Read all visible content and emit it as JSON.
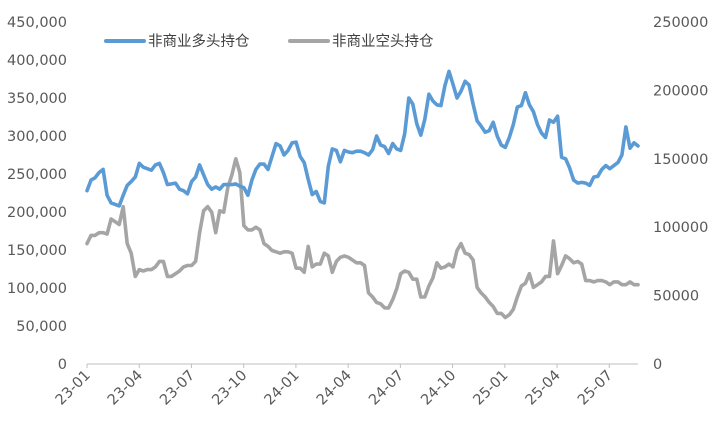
{
  "chart_data": {
    "type": "line",
    "title": "",
    "xlabel": "",
    "ylabel": "",
    "grid": false,
    "legend_position": "top-left",
    "x_ticks": [
      "23-01",
      "23-04",
      "23-07",
      "23-10",
      "24-01",
      "24-04",
      "24-07",
      "24-10",
      "25-01",
      "25-04",
      "25-07"
    ],
    "x_range": [
      0,
      144
    ],
    "y_left": {
      "range": [
        0,
        450000
      ],
      "ticks": [
        0,
        50000,
        100000,
        150000,
        200000,
        250000,
        300000,
        350000,
        400000,
        450000
      ],
      "tick_labels": [
        "0",
        "50,000",
        "100,000",
        "150,000",
        "200,000",
        "250,000",
        "300,000",
        "350,000",
        "400,000",
        "450,000"
      ]
    },
    "y_right": {
      "range": [
        0,
        250000
      ],
      "ticks": [
        0,
        50000,
        100000,
        150000,
        200000,
        250000
      ],
      "tick_labels": [
        "0",
        "50000",
        "100000",
        "150000",
        "200000",
        "250000"
      ]
    },
    "series": [
      {
        "name": "非商业多头持仓",
        "axis": "left",
        "color": "#5B9BD5",
        "values": [
          228000,
          242000,
          245000,
          252000,
          256000,
          222000,
          212000,
          210000,
          208000,
          222000,
          235000,
          240000,
          246000,
          264000,
          259000,
          257000,
          255000,
          262000,
          264000,
          252000,
          236000,
          237000,
          238000,
          230000,
          228000,
          224000,
          240000,
          246000,
          262000,
          249000,
          236000,
          230000,
          233000,
          230000,
          236000,
          236000,
          236000,
          237000,
          234000,
          232000,
          222000,
          242000,
          256000,
          263000,
          263000,
          256000,
          273000,
          290000,
          287000,
          275000,
          281000,
          291000,
          292000,
          273000,
          265000,
          243000,
          223000,
          227000,
          214000,
          212000,
          260000,
          283000,
          281000,
          266000,
          281000,
          279000,
          278000,
          280000,
          280000,
          278000,
          275000,
          282000,
          300000,
          288000,
          286000,
          277000,
          290000,
          283000,
          281000,
          303000,
          350000,
          342000,
          316000,
          301000,
          322000,
          355000,
          346000,
          341000,
          340000,
          366000,
          385000,
          368000,
          350000,
          359000,
          372000,
          367000,
          342000,
          320000,
          313000,
          305000,
          307000,
          318000,
          300000,
          288000,
          285000,
          298000,
          315000,
          338000,
          340000,
          357000,
          341000,
          332000,
          315000,
          304000,
          298000,
          321000,
          318000,
          326000,
          272000,
          270000,
          258000,
          242000,
          238000,
          239000,
          238000,
          235000,
          246000,
          247000,
          256000,
          261000,
          257000,
          261000,
          265000,
          275000,
          312000,
          284000,
          291000,
          287000
        ]
      },
      {
        "name": "非商业空头持仓",
        "axis": "right",
        "color": "#A5A5A5",
        "values": [
          88000,
          94000,
          94000,
          96000,
          96000,
          95000,
          106000,
          104000,
          102000,
          115000,
          88000,
          81000,
          64000,
          69000,
          68000,
          69000,
          69000,
          71000,
          75000,
          75000,
          64000,
          64000,
          66000,
          68000,
          71000,
          72000,
          72000,
          75000,
          96000,
          112000,
          115000,
          111000,
          96000,
          112000,
          111000,
          129000,
          138000,
          150000,
          140000,
          101000,
          98000,
          98000,
          100000,
          98000,
          88000,
          86000,
          83000,
          82000,
          81000,
          82000,
          82000,
          81000,
          70000,
          70000,
          67000,
          86000,
          71000,
          73000,
          73000,
          81000,
          79000,
          67000,
          75000,
          78000,
          79000,
          78000,
          76000,
          74000,
          74000,
          72000,
          52000,
          49000,
          45000,
          44000,
          41000,
          41000,
          47000,
          55000,
          66000,
          68000,
          67000,
          62000,
          62000,
          49000,
          49000,
          57000,
          63000,
          74000,
          70000,
          71000,
          73000,
          71000,
          83000,
          88000,
          81000,
          80000,
          76000,
          56000,
          52000,
          49000,
          45000,
          42000,
          37000,
          37000,
          34000,
          36000,
          40000,
          49000,
          57000,
          59000,
          66000,
          56000,
          58000,
          60000,
          64000,
          64000,
          90000,
          66000,
          72000,
          79000,
          77000,
          74000,
          75000,
          73000,
          61000,
          61000,
          60000,
          61000,
          61000,
          60000,
          58000,
          60000,
          60000,
          58000,
          58000,
          60000,
          58000,
          58000
        ]
      }
    ]
  }
}
